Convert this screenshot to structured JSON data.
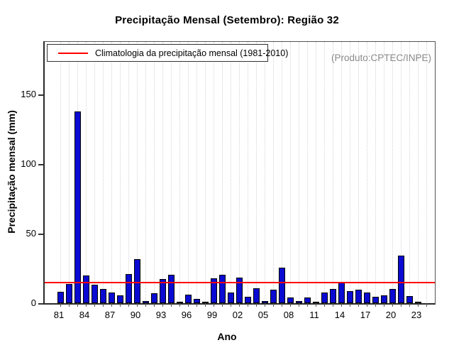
{
  "chart_data": {
    "type": "bar",
    "title": "Precipitação Mensal (Setembro): Região 32",
    "xlabel": "Ano",
    "ylabel": "Precipitação mensal (mm)",
    "watermark": "(Produto:CPTEC/INPE)",
    "legend": [
      {
        "label": "Climatologia da precipitação mensal (1981-2010)",
        "color": "#ff0000"
      }
    ],
    "years": [
      1981,
      1982,
      1983,
      1984,
      1985,
      1986,
      1987,
      1988,
      1989,
      1990,
      1991,
      1992,
      1993,
      1994,
      1995,
      1996,
      1997,
      1998,
      1999,
      2000,
      2001,
      2002,
      2003,
      2004,
      2005,
      2006,
      2007,
      2008,
      2009,
      2010,
      2011,
      2012,
      2013,
      2014,
      2015,
      2016,
      2017,
      2018,
      2019,
      2020,
      2021,
      2022,
      2023
    ],
    "values": [
      8,
      14,
      138,
      20,
      13.5,
      10,
      7.5,
      5.5,
      21,
      31.5,
      1.5,
      7,
      17.5,
      20.5,
      1.2,
      6,
      3,
      0.8,
      18,
      20.5,
      7.5,
      18.5,
      4.5,
      10.5,
      1.4,
      9.5,
      25.5,
      4.2,
      1.5,
      4,
      1.2,
      7.7,
      10,
      15,
      8.6,
      9.6,
      7.7,
      4.6,
      5.6,
      10.3,
      34.5,
      5,
      0.4
    ],
    "climatology_value": 15,
    "x_tick_labels": [
      "81",
      "84",
      "87",
      "90",
      "93",
      "96",
      "99",
      "02",
      "05",
      "08",
      "11",
      "14",
      "17",
      "20",
      "23"
    ],
    "x_tick_label_step": 3,
    "x_slots": 44,
    "y_ticks": [
      0,
      50,
      100,
      150
    ],
    "ylim": [
      0,
      188
    ],
    "grid": "vertical-dotted",
    "legend_position": "top-left-inside",
    "bar_color": "#0a0ad2",
    "line_color": "#ff0000"
  }
}
